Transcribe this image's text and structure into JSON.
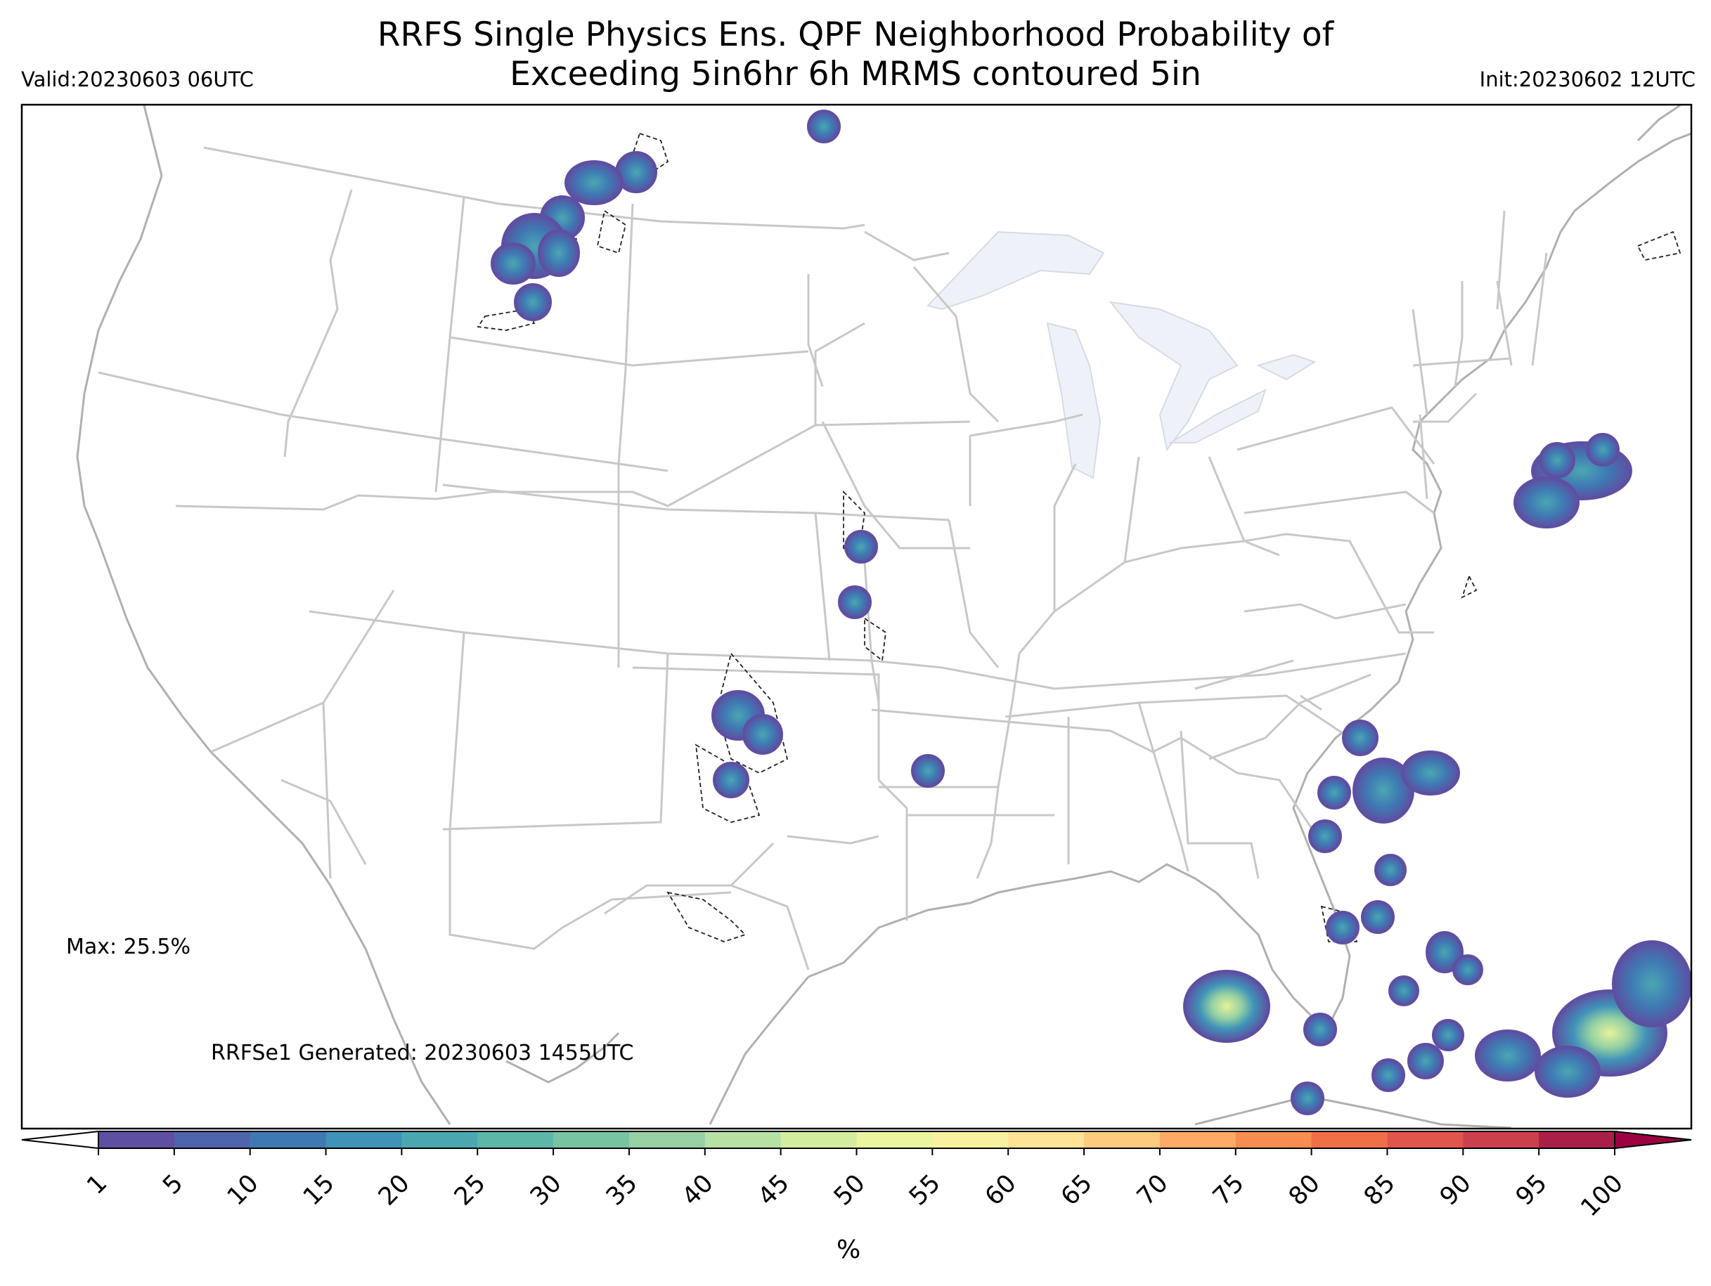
{
  "header": {
    "title_line1": "RRFS Single Physics Ens. QPF Neighborhood Probability of",
    "title_line2": "Exceeding 5in6hr 6h MRMS contoured 5in",
    "valid": "Valid:20230603 06UTC",
    "init": "Init:20230602 12UTC"
  },
  "annotations": {
    "max": "Max: 25.5%",
    "generated": "RRFSe1 Generated: 20230603 1455UTC"
  },
  "colorbar": {
    "unit_label": "%",
    "ticks": [
      "1",
      "5",
      "10",
      "15",
      "20",
      "25",
      "30",
      "35",
      "40",
      "45",
      "50",
      "55",
      "60",
      "65",
      "70",
      "75",
      "80",
      "85",
      "90",
      "95",
      "100"
    ],
    "colors": [
      "#5e4fa2",
      "#4e64ad",
      "#3f79b4",
      "#3f93b8",
      "#4aa7b2",
      "#5cb7a9",
      "#77c4a3",
      "#96d1a3",
      "#b7e0a3",
      "#d3ec9e",
      "#eaf59d",
      "#f8f2a0",
      "#fde395",
      "#fdcb7d",
      "#fcaa65",
      "#f88d52",
      "#ef6f47",
      "#e1554a",
      "#cc3f4d",
      "#aa1f47"
    ],
    "under_color": "#ffffff",
    "over_color": "#9e0142"
  },
  "colors": {
    "state_border": "#c4c4c4",
    "coastline": "#b0b0b0",
    "lake_fill": "#eef2f8",
    "mrms_contour": "#222222"
  }
}
